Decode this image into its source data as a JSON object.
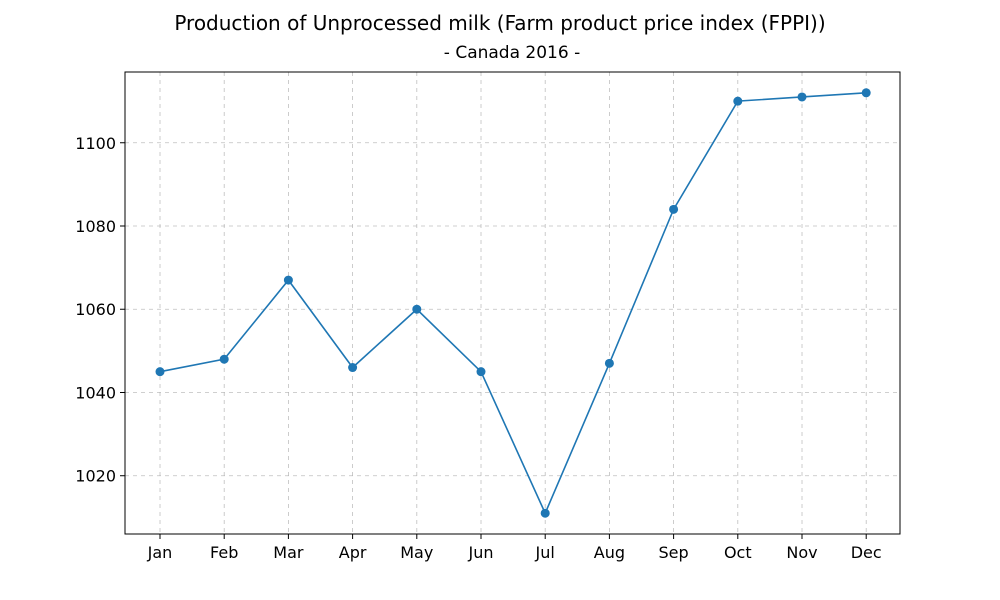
{
  "chart_data": {
    "type": "line",
    "title": "Production of Unprocessed milk (Farm product price index (FPPI))",
    "subtitle": "- Canada 2016 -",
    "xlabel": "",
    "ylabel": "",
    "categories": [
      "Jan",
      "Feb",
      "Mar",
      "Apr",
      "May",
      "Jun",
      "Jul",
      "Aug",
      "Sep",
      "Oct",
      "Nov",
      "Dec"
    ],
    "series": [
      {
        "values": [
          1045,
          1048,
          1067,
          1046,
          1060,
          1045,
          1011,
          1047,
          1084,
          1110,
          1111,
          1112
        ],
        "color": "#1f77b4",
        "marker": "circle"
      }
    ],
    "yticks": [
      1020,
      1040,
      1060,
      1080,
      1100
    ],
    "ylim": [
      1006,
      1117
    ],
    "grid": true,
    "legend": "none"
  }
}
